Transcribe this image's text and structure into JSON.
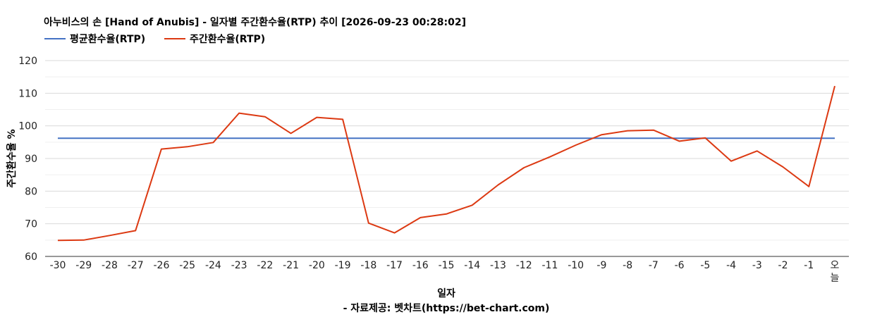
{
  "chart_data": {
    "type": "line",
    "title": "아누비스의 손 [Hand of Anubis] - 일자별 주간환수율(RTP) 추이 [2026-09-23 00:28:02]",
    "xlabel": "일자",
    "ylabel": "주간환수율 %",
    "credit": "- 자료제공: 벳차트(https://bet-chart.com)",
    "categories": [
      "-30",
      "-29",
      "-28",
      "-27",
      "-26",
      "-25",
      "-24",
      "-23",
      "-22",
      "-21",
      "-20",
      "-19",
      "-18",
      "-17",
      "-16",
      "-15",
      "-14",
      "-13",
      "-12",
      "-11",
      "-10",
      "-9",
      "-8",
      "-7",
      "-6",
      "-5",
      "-4",
      "-3",
      "-2",
      "-1",
      "오늘"
    ],
    "ylim": [
      60,
      120
    ],
    "yticks": [
      60,
      70,
      80,
      90,
      100,
      110,
      120
    ],
    "grid": true,
    "legend_position": "top-left",
    "series": [
      {
        "name": "평균환수율(RTP)",
        "color": "#4472c4",
        "values": [
          96.2,
          96.2,
          96.2,
          96.2,
          96.2,
          96.2,
          96.2,
          96.2,
          96.2,
          96.2,
          96.2,
          96.2,
          96.2,
          96.2,
          96.2,
          96.2,
          96.2,
          96.2,
          96.2,
          96.2,
          96.2,
          96.2,
          96.2,
          96.2,
          96.2,
          96.2,
          96.2,
          96.2,
          96.2,
          96.2,
          96.2
        ]
      },
      {
        "name": "주간환수율(RTP)",
        "color": "#dc3912",
        "values": [
          64.9,
          65.0,
          66.4,
          67.9,
          92.9,
          93.6,
          94.9,
          103.9,
          102.8,
          97.7,
          102.6,
          102.0,
          70.2,
          67.2,
          71.9,
          73.0,
          75.7,
          81.9,
          87.2,
          90.5,
          94.1,
          97.3,
          98.5,
          98.7,
          95.3,
          96.3,
          89.2,
          92.3,
          87.4,
          81.4,
          112.2
        ]
      }
    ]
  }
}
